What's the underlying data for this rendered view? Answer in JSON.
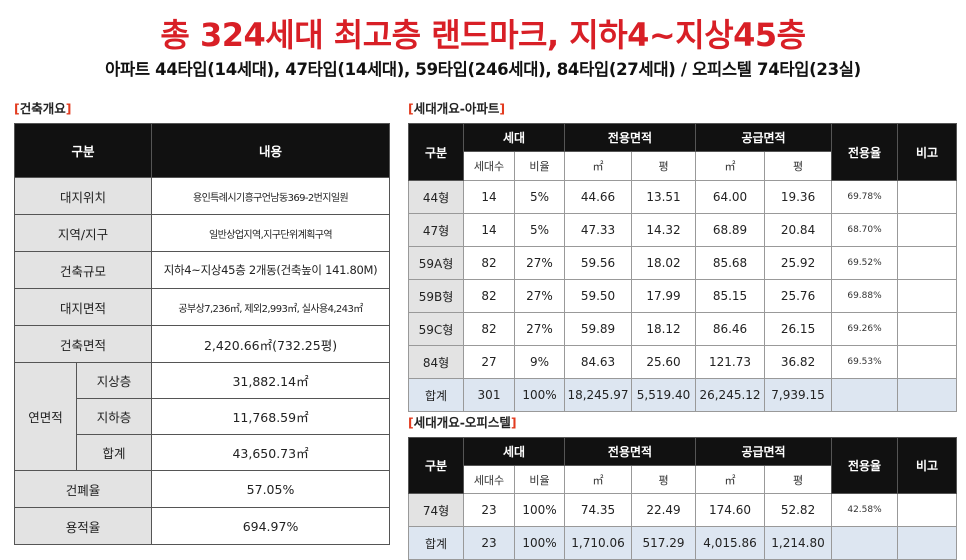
{
  "headline": "총 324세대 최고층 랜드마크, 지하4~지상45층",
  "subheadline": "아파트 44타입(14세대), 47타입(14세대), 59타입(246세대), 84타입(27세대) / 오피스텔 74타입(23실)",
  "building": {
    "section_title": "건축개요",
    "header": {
      "col1": "구분",
      "col2": "내용"
    },
    "rows": {
      "site_location": {
        "label": "대지위치",
        "value": "용인특례시기흥구언남동369-2번지일원"
      },
      "zone": {
        "label": "지역/지구",
        "value": "일반상업지역,지구단위계획구역"
      },
      "scale": {
        "label": "건축규모",
        "value": "지하4~지상45층 2개동(건축높이 141.80M)"
      },
      "site_area": {
        "label": "대지면적",
        "value": "공부상7,236㎡, 제외2,993㎡, 실사용4,243㎡"
      },
      "building_area": {
        "label": "건축면적",
        "value": "2,420.66㎡(732.25평)"
      },
      "gross_floor": {
        "label": "연면적",
        "above": {
          "label": "지상층",
          "value": "31,882.14㎡"
        },
        "below": {
          "label": "지하층",
          "value": "11,768.59㎡"
        },
        "total": {
          "label": "합계",
          "value": "43,650.73㎡"
        }
      },
      "coverage": {
        "label": "건폐율",
        "value": "57.05%"
      },
      "far": {
        "label": "용적율",
        "value": "694.97%"
      }
    }
  },
  "apartment": {
    "section_title": "세대개요-아파트",
    "headers": {
      "category": "구분",
      "units": "세대",
      "exclusive": "전용면적",
      "supply": "공급면적",
      "ratio": "전용율",
      "note": "비고",
      "count": "세대수",
      "share": "비율",
      "sqm": "㎡",
      "pyeong": "평"
    },
    "rows": [
      {
        "type": "44형",
        "count": "14",
        "share": "5%",
        "ex_sqm": "44.66",
        "ex_py": "13.51",
        "sup_sqm": "64.00",
        "sup_py": "19.36",
        "ratio": "69.78%",
        "note": ""
      },
      {
        "type": "47형",
        "count": "14",
        "share": "5%",
        "ex_sqm": "47.33",
        "ex_py": "14.32",
        "sup_sqm": "68.89",
        "sup_py": "20.84",
        "ratio": "68.70%",
        "note": ""
      },
      {
        "type": "59A형",
        "count": "82",
        "share": "27%",
        "ex_sqm": "59.56",
        "ex_py": "18.02",
        "sup_sqm": "85.68",
        "sup_py": "25.92",
        "ratio": "69.52%",
        "note": ""
      },
      {
        "type": "59B형",
        "count": "82",
        "share": "27%",
        "ex_sqm": "59.50",
        "ex_py": "17.99",
        "sup_sqm": "85.15",
        "sup_py": "25.76",
        "ratio": "69.88%",
        "note": ""
      },
      {
        "type": "59C형",
        "count": "82",
        "share": "27%",
        "ex_sqm": "59.89",
        "ex_py": "18.12",
        "sup_sqm": "86.46",
        "sup_py": "26.15",
        "ratio": "69.26%",
        "note": ""
      },
      {
        "type": "84형",
        "count": "27",
        "share": "9%",
        "ex_sqm": "84.63",
        "ex_py": "25.60",
        "sup_sqm": "121.73",
        "sup_py": "36.82",
        "ratio": "69.53%",
        "note": ""
      }
    ],
    "total": {
      "type": "합계",
      "count": "301",
      "share": "100%",
      "ex_sqm": "18,245.97",
      "ex_py": "5,519.40",
      "sup_sqm": "26,245.12",
      "sup_py": "7,939.15",
      "ratio": "",
      "note": ""
    }
  },
  "officetel": {
    "section_title": "세대개요-오피스텔",
    "headers": {
      "category": "구분",
      "units": "세대",
      "exclusive": "전용면적",
      "supply": "공급면적",
      "ratio": "전용율",
      "note": "비고",
      "count": "세대수",
      "share": "비율",
      "sqm": "㎡",
      "pyeong": "평"
    },
    "rows": [
      {
        "type": "74형",
        "count": "23",
        "share": "100%",
        "ex_sqm": "74.35",
        "ex_py": "22.49",
        "sup_sqm": "174.60",
        "sup_py": "52.82",
        "ratio": "42.58%",
        "note": ""
      }
    ],
    "total": {
      "type": "합계",
      "count": "23",
      "share": "100%",
      "ex_sqm": "1,710.06",
      "ex_py": "517.29",
      "sup_sqm": "4,015.86",
      "sup_py": "1,214.80",
      "ratio": "",
      "note": ""
    }
  },
  "colors": {
    "headline": "#d81f26",
    "bracket": "#e23b1f",
    "header_bg": "#111111",
    "label_bg": "#e3e3e3",
    "total_bg": "#dde6f1"
  }
}
